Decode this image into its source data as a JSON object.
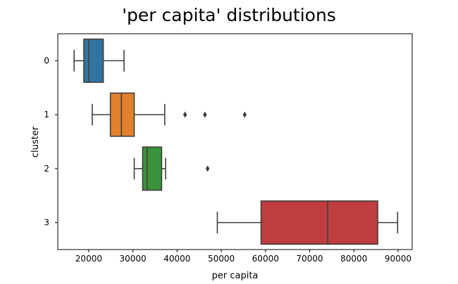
{
  "chart_data": {
    "type": "box",
    "title": "'per capita' distributions",
    "xlabel": "per capita",
    "ylabel": "cluster",
    "xlim": [
      13000,
      93200
    ],
    "x_ticks": [
      20000,
      30000,
      40000,
      50000,
      60000,
      70000,
      80000,
      90000
    ],
    "x_tick_labels": [
      "20000",
      "30000",
      "40000",
      "50000",
      "60000",
      "70000",
      "80000",
      "90000"
    ],
    "categories": [
      "0",
      "1",
      "2",
      "3"
    ],
    "grid": false,
    "legend": "none",
    "boxes": [
      {
        "category": "0",
        "whisker_low": 16700,
        "q1": 18900,
        "median": 20000,
        "q3": 23300,
        "whisker_high": 28000,
        "outliers": [],
        "color": "#3274a1"
      },
      {
        "category": "1",
        "whisker_low": 20800,
        "q1": 24900,
        "median": 27400,
        "q3": 30300,
        "whisker_high": 37200,
        "outliers": [
          41800,
          46300,
          55300
        ],
        "color": "#e1812c"
      },
      {
        "category": "2",
        "whisker_low": 30300,
        "q1": 32200,
        "median": 33200,
        "q3": 36500,
        "whisker_high": 37400,
        "outliers": [
          46900
        ],
        "color": "#3a923a"
      },
      {
        "category": "3",
        "whisker_low": 49100,
        "q1": 59000,
        "median": 74100,
        "q3": 85400,
        "whisker_high": 89900,
        "outliers": [],
        "color": "#c03d3e"
      }
    ]
  }
}
